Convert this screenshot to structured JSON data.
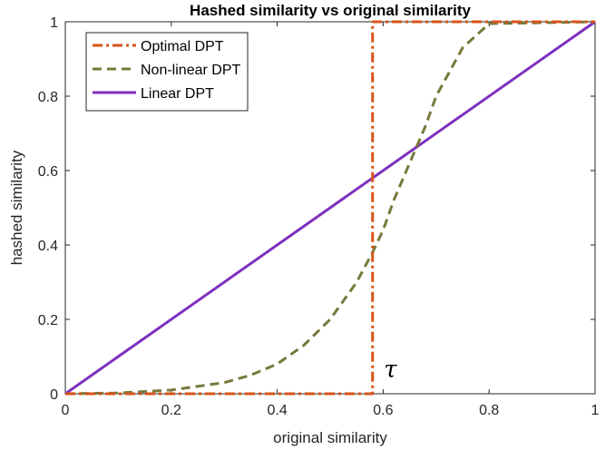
{
  "chart_data": {
    "type": "line",
    "title": "Hashed similarity vs original similarity",
    "xlabel": "original similarity",
    "ylabel": "hashed similarity",
    "xlim": [
      0,
      1
    ],
    "ylim": [
      0,
      1
    ],
    "xticks": [
      0,
      0.2,
      0.4,
      0.6,
      0.8,
      1
    ],
    "yticks": [
      0,
      0.2,
      0.4,
      0.6,
      0.8,
      1
    ],
    "xtick_labels": [
      "0",
      "0.2",
      "0.4",
      "0.6",
      "0.8",
      "1"
    ],
    "ytick_labels": [
      "0",
      "0.2",
      "0.4",
      "0.6",
      "0.8",
      "1"
    ],
    "grid": false,
    "legend_position": "top-left",
    "annotations": [
      {
        "text": "τ",
        "x": 0.6,
        "y": 0.04
      }
    ],
    "series": [
      {
        "name": "Optimal DPT",
        "color": "#d95319",
        "style": "dashdot",
        "x": [
          0,
          0.58,
          0.58,
          0.59,
          0.59,
          1
        ],
        "y": [
          0,
          0,
          1,
          1,
          1,
          1
        ]
      },
      {
        "name": "Non-linear DPT",
        "color": "#77793a",
        "style": "dashed",
        "x": [
          0,
          0.1,
          0.2,
          0.3,
          0.35,
          0.4,
          0.45,
          0.5,
          0.55,
          0.58,
          0.6,
          0.62,
          0.65,
          0.68,
          0.7,
          0.75,
          0.8,
          1
        ],
        "y": [
          0,
          0.002,
          0.01,
          0.03,
          0.05,
          0.08,
          0.13,
          0.2,
          0.3,
          0.38,
          0.44,
          0.52,
          0.62,
          0.72,
          0.8,
          0.93,
          0.995,
          1
        ]
      },
      {
        "name": "Linear DPT",
        "color": "#7e2fbe",
        "style": "solid",
        "x": [
          0,
          1
        ],
        "y": [
          0,
          1
        ]
      }
    ]
  }
}
